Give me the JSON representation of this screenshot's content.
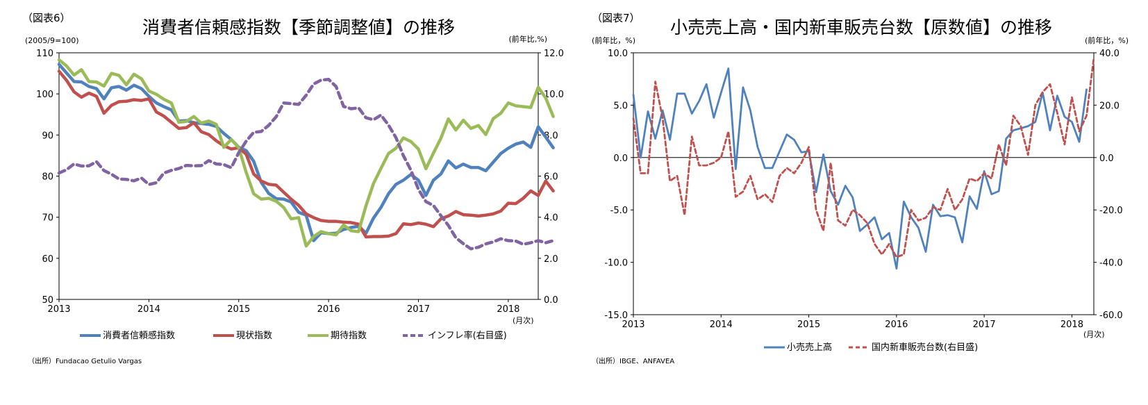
{
  "chart_data": [
    {
      "type": "line",
      "figure_label": "（図表6）",
      "title": "消費者信頼感指数【季節調整値】の推移",
      "left_unit": "(2005/9=100)",
      "right_unit": "(前年比,%)",
      "x_unit": "(月次)",
      "source": "（出所）Fundacao Getulio Vargas",
      "ylim": [
        50,
        110
      ],
      "y2lim": [
        0,
        12
      ],
      "yticks": [
        "110",
        "100",
        "90",
        "80",
        "70",
        "60",
        "50"
      ],
      "y2ticks": [
        "12.0",
        "10.0",
        "8.0",
        "6.0",
        "4.0",
        "2.0",
        "0.0"
      ],
      "xticks": [
        "2013",
        "2014",
        "2015",
        "2016",
        "2017",
        "2018"
      ],
      "x_start": "2013-01",
      "x_end": "2018-05",
      "series": [
        {
          "name": "消費者信頼感指数",
          "axis": "left",
          "color": "#4f81bd",
          "dash": false,
          "values": [
            107.2,
            105.1,
            103.0,
            102.9,
            101.8,
            101.3,
            98.8,
            101.5,
            101.8,
            100.9,
            102.1,
            101.3,
            99.4,
            97.8,
            96.9,
            96.1,
            93.4,
            93.5,
            93.0,
            92.8,
            92.6,
            92.1,
            90.4,
            88.9,
            87.0,
            86.2,
            83.6,
            78.5,
            75.8,
            74.5,
            74.4,
            73.7,
            71.2,
            70.5,
            64.3,
            66.2,
            66.0,
            66.1,
            67.0,
            67.5,
            67.8,
            66.1,
            69.8,
            72.4,
            75.7,
            78.0,
            79.0,
            80.4,
            79.0,
            75.3,
            79.0,
            80.5,
            83.7,
            82.0,
            82.9,
            82.1,
            82.1,
            81.3,
            83.4,
            85.5,
            86.8,
            87.8,
            88.3,
            87.0,
            92.0,
            89.5,
            86.9
          ]
        },
        {
          "name": "現状指数",
          "axis": "left",
          "color": "#c0504d",
          "dash": false,
          "values": [
            105.5,
            103.3,
            100.5,
            99.2,
            100.2,
            99.4,
            95.3,
            97.2,
            98.1,
            98.2,
            98.6,
            98.4,
            98.8,
            95.6,
            94.6,
            93.1,
            91.6,
            91.8,
            93.0,
            90.8,
            90.1,
            88.6,
            87.4,
            86.6,
            86.9,
            85.3,
            80.5,
            78.8,
            78.0,
            77.8,
            76.1,
            74.4,
            72.9,
            70.8,
            69.9,
            69.2,
            69.0,
            69.0,
            68.8,
            68.7,
            68.3,
            65.2,
            65.3,
            65.3,
            65.4,
            66.0,
            68.4,
            68.2,
            68.6,
            68.3,
            67.7,
            69.6,
            70.3,
            71.4,
            70.6,
            70.5,
            70.3,
            70.5,
            70.8,
            71.5,
            73.4,
            73.3,
            74.6,
            76.4,
            75.3,
            78.8,
            76.4
          ]
        },
        {
          "name": "期待指数",
          "axis": "left",
          "color": "#9bbb59",
          "dash": false,
          "values": [
            108.3,
            106.8,
            104.6,
            105.9,
            103.0,
            102.9,
            101.9,
            105.0,
            104.5,
            102.2,
            104.8,
            103.7,
            100.7,
            99.9,
            98.7,
            97.8,
            93.1,
            93.3,
            94.5,
            92.9,
            93.4,
            92.6,
            87.0,
            88.9,
            86.9,
            80.9,
            75.7,
            74.4,
            74.6,
            73.9,
            72.4,
            69.6,
            69.9,
            63.0,
            65.3,
            66.5,
            66.0,
            65.7,
            68.1,
            66.7,
            66.5,
            72.8,
            78.2,
            81.9,
            85.5,
            86.8,
            89.3,
            88.4,
            86.6,
            81.8,
            85.6,
            89.2,
            93.9,
            91.2,
            93.6,
            91.6,
            92.3,
            90.1,
            94.0,
            95.3,
            97.8,
            97.1,
            96.9,
            96.7,
            101.6,
            99.0,
            94.5
          ]
        },
        {
          "name": "インフレ率(右目盛)",
          "axis": "right",
          "color": "#8064a2",
          "dash": true,
          "values": [
            6.15,
            6.31,
            6.59,
            6.49,
            6.5,
            6.7,
            6.27,
            6.09,
            5.86,
            5.84,
            5.77,
            5.91,
            5.59,
            5.68,
            6.15,
            6.28,
            6.37,
            6.52,
            6.5,
            6.51,
            6.75,
            6.59,
            6.56,
            6.41,
            7.14,
            7.7,
            8.13,
            8.17,
            8.47,
            8.89,
            9.56,
            9.53,
            9.49,
            9.93,
            10.48,
            10.67,
            10.71,
            10.36,
            9.39,
            9.28,
            9.32,
            8.84,
            8.74,
            8.97,
            8.48,
            7.87,
            6.99,
            6.29,
            5.35,
            4.76,
            4.57,
            4.08,
            3.6,
            3.0,
            2.71,
            2.46,
            2.54,
            2.7,
            2.8,
            2.95,
            2.86,
            2.84,
            2.68,
            2.76,
            2.86,
            2.76,
            2.86
          ]
        }
      ],
      "legend": [
        "消費者信頼感指数",
        "現状指数",
        "期待指数",
        "インフレ率(右目盛)"
      ]
    },
    {
      "type": "line",
      "figure_label": "（図表7）",
      "title": "小売売上高・国内新車販売台数【原数値】の推移",
      "left_unit": "(前年比，%)",
      "right_unit": "(前年比，%)",
      "x_unit": "(月次)",
      "source": "（出所）IBGE、ANFAVEA",
      "ylim": [
        -15,
        10
      ],
      "y2lim": [
        -60,
        40
      ],
      "yticks": [
        "10.0",
        "5.0",
        "0.0",
        "-5.0",
        "-10.0",
        "-15.0"
      ],
      "y2ticks": [
        "40.0",
        "20.0",
        "0.0",
        "-20.0",
        "-40.0",
        "-60.0"
      ],
      "xticks": [
        "2013",
        "2014",
        "2015",
        "2016",
        "2017",
        "2018"
      ],
      "x_start": "2013-01",
      "x_end": "2018-04",
      "series": [
        {
          "name": "小売売上高",
          "axis": "left",
          "color": "#4f81bd",
          "dash": false,
          "values": [
            6.0,
            0.0,
            4.4,
            1.8,
            4.5,
            1.7,
            6.1,
            6.1,
            4.2,
            5.4,
            7.0,
            3.8,
            6.2,
            8.5,
            -1.1,
            6.7,
            4.5,
            1.0,
            -1.0,
            -1.0,
            0.6,
            2.2,
            1.7,
            0.5,
            0.6,
            -3.3,
            0.3,
            -3.2,
            -4.5,
            -2.7,
            -3.8,
            -7.0,
            -6.4,
            -5.7,
            -7.8,
            -7.2,
            -10.6,
            -4.2,
            -5.7,
            -6.7,
            -9.0,
            -4.5,
            -5.6,
            -5.5,
            -5.7,
            -8.1,
            -3.7,
            -4.9,
            -1.3,
            -3.5,
            -3.2,
            1.8,
            2.6,
            2.8,
            3.0,
            3.4,
            6.2,
            2.6,
            5.9,
            3.9,
            3.4,
            1.5,
            6.5
          ]
        },
        {
          "name": "国内新車販売台数(右目盛)",
          "axis": "right",
          "color": "#c0504d",
          "dash": true,
          "values": [
            15.0,
            -6.0,
            -6.0,
            29.0,
            15.0,
            -9.0,
            -7.0,
            -22.0,
            8.0,
            -3.0,
            -3.0,
            -2.0,
            0.0,
            10.0,
            -15.0,
            -13.0,
            -7.0,
            -16.0,
            -14.0,
            -17.0,
            -7.0,
            -4.0,
            -6.0,
            -2.0,
            4.0,
            -20.0,
            -28.0,
            -2.0,
            -24.0,
            -26.0,
            -20.0,
            -22.0,
            -25.0,
            -33.0,
            -37.0,
            -33.0,
            -38.0,
            -37.0,
            -20.0,
            -24.0,
            -23.0,
            -19.0,
            -20.0,
            -12.0,
            -20.0,
            -16.0,
            -8.0,
            -9.0,
            -6.0,
            -8.0,
            5.0,
            -3.0,
            16.0,
            12.0,
            1.0,
            20.0,
            25.0,
            28.0,
            17.0,
            5.0,
            23.0,
            10.0,
            16.0,
            38.0
          ]
        }
      ],
      "legend": [
        "小売売上高",
        "国内新車販売台数(右目盛)"
      ]
    }
  ]
}
